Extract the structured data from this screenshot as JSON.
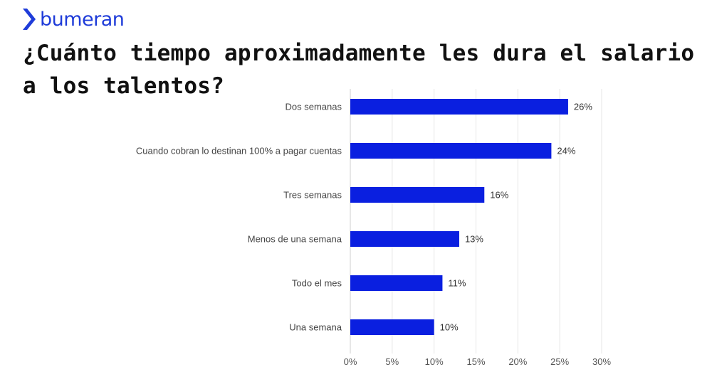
{
  "brand": {
    "name": "bumeran",
    "color": "#1f3cd9"
  },
  "title": "¿Cuánto tiempo aproximadamente les dura el salario a los talentos?",
  "chart_data": {
    "type": "bar",
    "orientation": "horizontal",
    "categories": [
      "Dos semanas",
      "Cuando cobran lo destinan 100% a pagar cuentas",
      "Tres semanas",
      "Menos de una semana",
      "Todo el mes",
      "Una semana"
    ],
    "values": [
      26,
      24,
      16,
      13,
      11,
      10
    ],
    "value_labels": [
      "26%",
      "24%",
      "16%",
      "13%",
      "11%",
      "10%"
    ],
    "x_ticks": [
      0,
      5,
      10,
      15,
      20,
      25,
      30
    ],
    "x_tick_labels": [
      "0%",
      "5%",
      "10%",
      "15%",
      "20%",
      "25%",
      "30%"
    ],
    "xlim": [
      0,
      30
    ],
    "grid": "vertical",
    "legend": "none",
    "bar_color": "#0a1fe0"
  }
}
